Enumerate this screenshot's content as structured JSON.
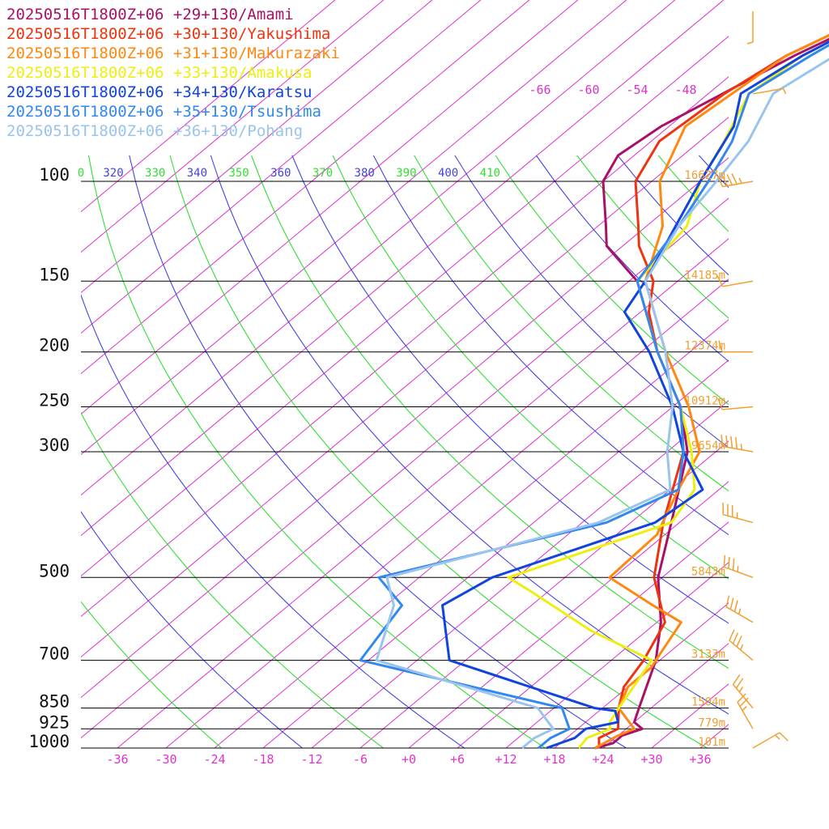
{
  "chart_data": {
    "type": "line",
    "subtype": "skew-T log-P sounding",
    "legend_placement": "top-left",
    "pressure_axis": {
      "ticks": [
        100,
        150,
        200,
        250,
        300,
        500,
        700,
        850,
        925,
        1000
      ],
      "labels": [
        "100",
        "150",
        "200",
        "250",
        "300",
        "500",
        "700",
        "850",
        "925",
        "1000"
      ],
      "range": [
        1000,
        100
      ],
      "scale": "log"
    },
    "temperature_axis": {
      "ticks": [
        -36,
        -30,
        -24,
        -18,
        -12,
        -6,
        0,
        6,
        12,
        18,
        24,
        30,
        36
      ],
      "labels": [
        "-36",
        "-30",
        "-24",
        "-18",
        "-12",
        "-6",
        "+0",
        "+6",
        "+12",
        "+18",
        "+24",
        "+30",
        "+36"
      ]
    },
    "upper_isotherm_labels": [
      "-66",
      "-60",
      "-54",
      "-48"
    ],
    "theta_labels": [
      {
        "text": "0",
        "color": "#33dd33"
      },
      {
        "text": "320",
        "color": "#4444dd"
      },
      {
        "text": "330",
        "color": "#33dd33"
      },
      {
        "text": "340",
        "color": "#4444dd"
      },
      {
        "text": "350",
        "color": "#33dd33"
      },
      {
        "text": "360",
        "color": "#4444dd"
      },
      {
        "text": "370",
        "color": "#33dd33"
      },
      {
        "text": "380",
        "color": "#4444dd"
      },
      {
        "text": "390",
        "color": "#33dd33"
      },
      {
        "text": "400",
        "color": "#4444dd"
      },
      {
        "text": "410",
        "color": "#33dd33"
      }
    ],
    "height_labels": [
      {
        "p": 100,
        "text": "16627m"
      },
      {
        "p": 150,
        "text": "14185m"
      },
      {
        "p": 200,
        "text": "12374m"
      },
      {
        "p": 250,
        "text": "10912m"
      },
      {
        "p": 300,
        "text": "9654m"
      },
      {
        "p": 500,
        "text": "5843m"
      },
      {
        "p": 700,
        "text": "3133m"
      },
      {
        "p": 850,
        "text": "1504m"
      },
      {
        "p": 925,
        "text": "779m"
      },
      {
        "p": 1000,
        "text": "101m"
      }
    ],
    "colors": {
      "isotherm": "#dd33cc",
      "dry_adiabat": "#4444dd",
      "moist_adiabat": "#33dd33",
      "isobar": "#000000",
      "wind_barb": "#f0a030"
    },
    "series": [
      {
        "name": "20250516T1800Z+06 +29+130/Amami",
        "color": "#aa1166",
        "temp": [
          [
            1000,
            23
          ],
          [
            980,
            24.5
          ],
          [
            950,
            24.5
          ],
          [
            925,
            26
          ],
          [
            900,
            24
          ],
          [
            850,
            22.5
          ],
          [
            700,
            17.5
          ],
          [
            600,
            12.5
          ],
          [
            500,
            5.5
          ],
          [
            400,
            -1
          ],
          [
            300,
            -9.5
          ],
          [
            250,
            -17
          ],
          [
            200,
            -28
          ],
          [
            150,
            -41
          ],
          [
            130,
            -50
          ],
          [
            120,
            -53
          ],
          [
            100,
            -60
          ],
          [
            90,
            -62
          ],
          [
            80,
            -61
          ],
          [
            60,
            -55
          ],
          [
            50,
            -50
          ]
        ]
      },
      {
        "name": "20250516T1800Z+06 +30+130/Yakushima",
        "color": "#ee3311",
        "temp": [
          [
            1000,
            23.5
          ],
          [
            960,
            22
          ],
          [
            925,
            23
          ],
          [
            850,
            20
          ],
          [
            780,
            17.5
          ],
          [
            700,
            16
          ],
          [
            600,
            13
          ],
          [
            500,
            5
          ],
          [
            400,
            -2
          ],
          [
            300,
            -10
          ],
          [
            250,
            -17
          ],
          [
            200,
            -28
          ],
          [
            170,
            -35
          ],
          [
            150,
            -39
          ],
          [
            130,
            -46
          ],
          [
            120,
            -49
          ],
          [
            100,
            -56
          ],
          [
            85,
            -59
          ],
          [
            70,
            -58
          ],
          [
            60,
            -56
          ],
          [
            50,
            -51
          ]
        ]
      },
      {
        "name": "20250516T1800Z+06 +31+130/Makurazaki",
        "color": "#ff8811",
        "temp": [
          [
            1000,
            23
          ],
          [
            950,
            24
          ],
          [
            925,
            25
          ],
          [
            850,
            20
          ],
          [
            780,
            18
          ],
          [
            720,
            18
          ],
          [
            700,
            17.5
          ],
          [
            600,
            15
          ],
          [
            560,
            9
          ],
          [
            500,
            -0.5
          ],
          [
            420,
            -1
          ],
          [
            350,
            -5
          ],
          [
            300,
            -8
          ],
          [
            250,
            -16
          ],
          [
            200,
            -27
          ],
          [
            150,
            -40
          ],
          [
            120,
            -46
          ],
          [
            100,
            -53
          ],
          [
            80,
            -58
          ],
          [
            60,
            -56
          ],
          [
            50,
            -51
          ]
        ]
      },
      {
        "name": "20250516T1800Z+06 +33+130/Amakusa",
        "color": "#eeee11",
        "temp": [
          [
            1000,
            21
          ],
          [
            960,
            20.5
          ],
          [
            925,
            22
          ],
          [
            900,
            21
          ],
          [
            850,
            20
          ],
          [
            700,
            17
          ],
          [
            620,
            5
          ],
          [
            530,
            -8
          ],
          [
            500,
            -13
          ],
          [
            400,
            -1
          ],
          [
            350,
            -3
          ],
          [
            300,
            -9
          ],
          [
            250,
            -17
          ],
          [
            200,
            -28
          ],
          [
            150,
            -41
          ],
          [
            120,
            -43
          ],
          [
            100,
            -48
          ],
          [
            85,
            -51
          ],
          [
            70,
            -55
          ],
          [
            60,
            -54
          ],
          [
            50,
            -50
          ]
        ]
      },
      {
        "name": "20250516T1800Z+06 +34+130/Karatsu",
        "color": "#1144dd",
        "temp": [
          [
            1000,
            17
          ],
          [
            960,
            19
          ],
          [
            925,
            19
          ],
          [
            900,
            22
          ],
          [
            860,
            20
          ],
          [
            850,
            17
          ],
          [
            700,
            -8
          ],
          [
            560,
            -17
          ],
          [
            500,
            -15
          ],
          [
            400,
            -3
          ],
          [
            350,
            -2
          ],
          [
            300,
            -10
          ],
          [
            250,
            -18
          ],
          [
            200,
            -29
          ],
          [
            170,
            -38
          ],
          [
            150,
            -40
          ],
          [
            100,
            -48
          ],
          [
            80,
            -52
          ],
          [
            70,
            -56
          ],
          [
            60,
            -54
          ],
          [
            50,
            -50
          ]
        ]
      },
      {
        "name": "20250516T1800Z+06 +35+130/Tsushima",
        "color": "#3388ee",
        "temp": [
          [
            1000,
            16
          ],
          [
            960,
            16
          ],
          [
            925,
            17
          ],
          [
            850,
            13
          ],
          [
            700,
            -19
          ],
          [
            560,
            -22
          ],
          [
            500,
            -29
          ],
          [
            400,
            -9
          ],
          [
            350,
            -5
          ],
          [
            300,
            -10
          ],
          [
            250,
            -17
          ],
          [
            200,
            -28
          ],
          [
            150,
            -41
          ],
          [
            120,
            -44
          ],
          [
            100,
            -47
          ],
          [
            85,
            -50
          ],
          [
            70,
            -55
          ],
          [
            60,
            -53
          ],
          [
            50,
            -50
          ]
        ]
      },
      {
        "name": "20250516T1800Z+06 +36+130/Pohang",
        "color": "#99c4ee",
        "temp": [
          [
            1000,
            14
          ],
          [
            960,
            14
          ],
          [
            925,
            15
          ],
          [
            850,
            10
          ],
          [
            700,
            -17
          ],
          [
            560,
            -23
          ],
          [
            500,
            -28
          ],
          [
            400,
            -10
          ],
          [
            350,
            -6
          ],
          [
            300,
            -12
          ],
          [
            250,
            -18
          ],
          [
            200,
            -27
          ],
          [
            150,
            -40
          ],
          [
            120,
            -44
          ],
          [
            100,
            -46
          ],
          [
            85,
            -48
          ],
          [
            70,
            -52
          ],
          [
            60,
            -50
          ],
          [
            50,
            -48
          ]
        ]
      }
    ],
    "wind_barbs": [
      {
        "p": 1000,
        "dir": 60,
        "kt": 15
      },
      {
        "p": 925,
        "dir": 330,
        "kt": 25
      },
      {
        "p": 850,
        "dir": 320,
        "kt": 25
      },
      {
        "p": 700,
        "dir": 310,
        "kt": 35
      },
      {
        "p": 600,
        "dir": 300,
        "kt": 35
      },
      {
        "p": 500,
        "dir": 290,
        "kt": 35
      },
      {
        "p": 400,
        "dir": 285,
        "kt": 35
      },
      {
        "p": 300,
        "dir": 280,
        "kt": 45
      },
      {
        "p": 250,
        "dir": 265,
        "kt": 10
      },
      {
        "p": 200,
        "dir": 270,
        "kt": 10
      },
      {
        "p": 150,
        "dir": 260,
        "kt": 10
      },
      {
        "p": 100,
        "dir": 260,
        "kt": 45
      },
      {
        "p": 70,
        "dir": 80,
        "kt": 5
      },
      {
        "p": 50,
        "dir": 180,
        "kt": 5
      }
    ]
  }
}
